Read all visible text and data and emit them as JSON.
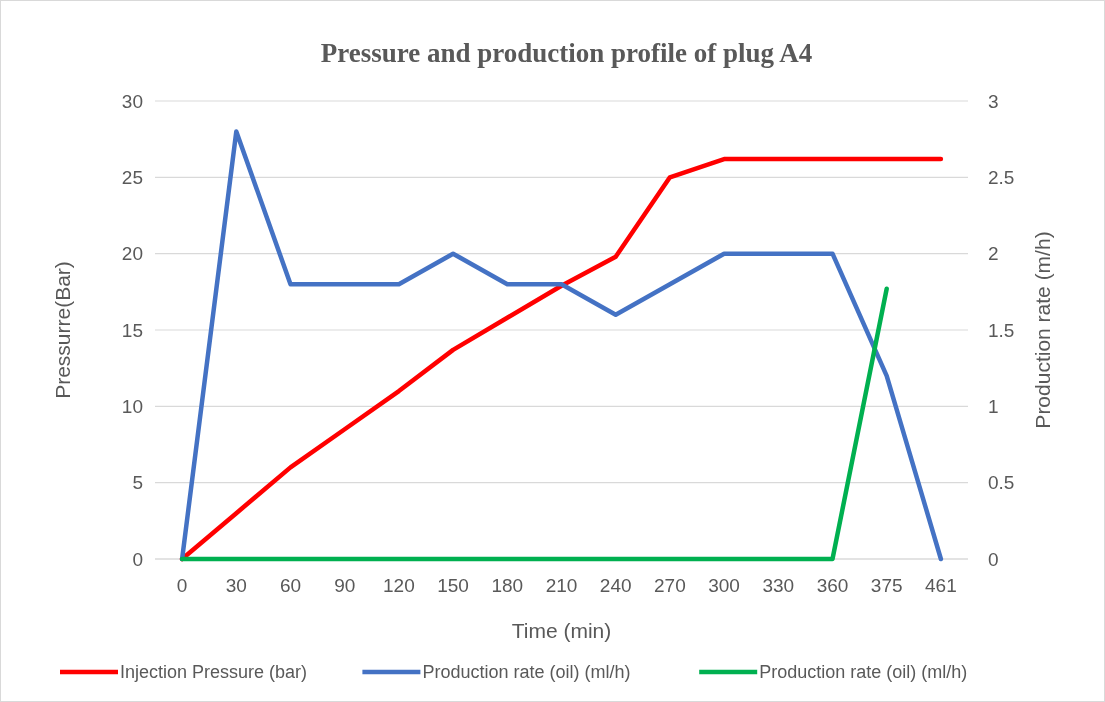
{
  "chart_data": {
    "type": "line",
    "title": "Pressure and production profile of plug A4",
    "xlabel": "Time (min)",
    "ylabel": "Pressurre(Bar)",
    "y2label": "Production rate (m/h)",
    "categories": [
      "0",
      "30",
      "60",
      "90",
      "120",
      "150",
      "180",
      "210",
      "240",
      "270",
      "300",
      "330",
      "360",
      "375",
      "461"
    ],
    "series": [
      {
        "name": "Injection Pressure (bar)",
        "color": "#ff0000",
        "values": [
          0,
          3,
          6,
          8.5,
          11,
          13.7,
          15.8,
          17.9,
          19.8,
          25,
          26.2,
          26.2,
          26.2,
          26.2,
          26.2
        ]
      },
      {
        "name": "Production rate (oil) (ml/h)",
        "color": "#4472c4",
        "axis": "y2",
        "values": [
          0,
          2.8,
          1.8,
          1.8,
          1.8,
          2.0,
          1.8,
          1.8,
          1.6,
          1.8,
          2.0,
          2.0,
          2.0,
          1.2,
          0
        ]
      },
      {
        "name": "Production rate (oil) (ml/h)",
        "color": "#00b050",
        "axis": "y2",
        "values": [
          0,
          0,
          0,
          0,
          0,
          0,
          0,
          0,
          0,
          0,
          0,
          0,
          0,
          1.77,
          null
        ]
      }
    ],
    "ylim": [
      0,
      30
    ],
    "yticks": [
      0,
      5,
      10,
      15,
      20,
      25,
      30
    ],
    "y2lim": [
      0,
      3
    ],
    "y2ticks": [
      0,
      0.5,
      1,
      1.5,
      2,
      2.5,
      3
    ],
    "grid": "y",
    "legend": "bottom",
    "marker": "none",
    "line_style": "solid"
  }
}
